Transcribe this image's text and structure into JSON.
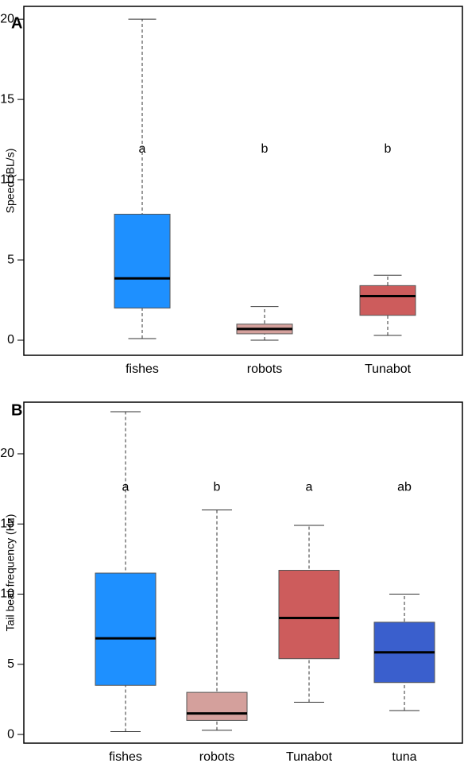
{
  "chart_data": [
    {
      "type": "box",
      "panel_label": "A",
      "ylabel": "Speed (BL/s)",
      "categories": [
        "fishes",
        "robots",
        "Tunabot"
      ],
      "colors": [
        "#1e90ff",
        "#d4a09c",
        "#cd5c5c"
      ],
      "boxes": [
        {
          "min": 0.1,
          "q1": 2.0,
          "median": 3.85,
          "q3": 7.85,
          "max": 20
        },
        {
          "min": 0.0,
          "q1": 0.4,
          "median": 0.7,
          "q3": 1.0,
          "max": 2.1
        },
        {
          "min": 0.3,
          "q1": 1.55,
          "median": 2.75,
          "q3": 3.4,
          "max": 4.05
        }
      ],
      "annotations": [
        "a",
        "b",
        "b"
      ],
      "ylim": [
        -0.94,
        20.8
      ],
      "yticks": [
        0,
        5,
        10,
        15,
        20
      ]
    },
    {
      "type": "box",
      "panel_label": "B",
      "ylabel": "Tail beat frequency (Hz)",
      "categories": [
        "fishes",
        "robots",
        "Tunabot",
        "tuna"
      ],
      "colors": [
        "#1e90ff",
        "#d4a09c",
        "#cd5c5c",
        "#3a5fcd"
      ],
      "boxes": [
        {
          "min": 0.2,
          "q1": 3.5,
          "median": 6.85,
          "q3": 11.5,
          "max": 23
        },
        {
          "min": 0.3,
          "q1": 1.0,
          "median": 1.5,
          "q3": 3.0,
          "max": 16
        },
        {
          "min": 2.3,
          "q1": 5.4,
          "median": 8.3,
          "q3": 11.7,
          "max": 14.9
        },
        {
          "min": 1.7,
          "q1": 3.7,
          "median": 5.85,
          "q3": 8.0,
          "max": 10.0
        }
      ],
      "annotations": [
        "a",
        "b",
        "a",
        "ab"
      ],
      "ylim": [
        -0.62,
        23.68
      ],
      "yticks": [
        0,
        5,
        10,
        15,
        20
      ]
    }
  ]
}
